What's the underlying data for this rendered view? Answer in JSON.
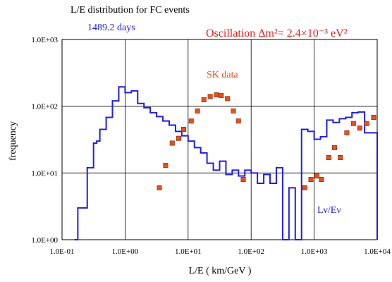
{
  "chart_data": {
    "type": "line",
    "title": "L/E distribution for FC events",
    "subtitle": "1489.2 days",
    "annotation": "Oscillation Δm²= 2.4×10⁻³ eV²",
    "xlabel": "L/E  ( km/GeV )",
    "ylabel": "frequency",
    "x_scale": "log",
    "y_scale": "log",
    "xlim": [
      0.1,
      10000
    ],
    "ylim": [
      1,
      1000
    ],
    "x_tick_labels": [
      "1.0E-01",
      "1.0E+00",
      "1.0E+01",
      "1.0E+02",
      "1.0E+03",
      "1.0E+04"
    ],
    "y_tick_labels": [
      "1.0E+00",
      "1.0E+01",
      "1.0E+02",
      "1.0E+03"
    ],
    "grid": true,
    "colors": {
      "mc": "#1f1fe0",
      "data": "#e8501a",
      "data_edge": "#7a2a08",
      "axis": "#000000"
    },
    "series": [
      {
        "name": "Lν/Eν",
        "kind": "step",
        "edges": [
          0.158,
          0.178,
          0.2,
          0.224,
          0.251,
          0.282,
          0.316,
          0.355,
          0.398,
          0.447,
          0.501,
          0.562,
          0.631,
          0.708,
          0.794,
          0.891,
          1.0,
          1.122,
          1.259,
          1.413,
          1.585,
          1.778,
          1.995,
          2.239,
          2.512,
          2.818,
          3.162,
          3.548,
          3.981,
          4.467,
          5.012,
          5.623,
          6.31,
          7.079,
          7.943,
          8.913,
          10.0,
          11.22,
          12.59,
          14.13,
          15.85,
          17.78,
          19.95,
          22.39,
          25.12,
          28.18,
          31.62,
          35.48,
          39.81,
          44.67,
          50.12,
          56.23,
          63.1,
          70.79,
          79.43,
          89.13,
          100.0,
          112.2,
          125.9,
          141.3,
          158.5,
          177.8,
          199.5,
          223.9,
          251.2,
          281.8,
          316.2,
          354.8,
          398.1,
          446.7,
          501.2,
          562.3,
          631.0,
          707.9,
          794.3,
          891.3,
          1000.0,
          1122.0,
          1259.0,
          1413.0,
          1585.0,
          1778.0,
          1995.0,
          2239.0,
          2512.0,
          2818.0,
          3162.0,
          3548.0,
          3981.0,
          4467.0,
          5012.0,
          5623.0,
          6310.0,
          7079.0,
          7943.0,
          8913.0,
          10000.0
        ],
        "values": [
          1.0,
          3.0,
          3.0,
          3.0,
          12.0,
          12.0,
          28.0,
          30.0,
          45.0,
          45.0,
          68.0,
          68.0,
          120.0,
          120.0,
          195.0,
          195.0,
          160.0,
          160.0,
          170.0,
          170.0,
          110.0,
          110.0,
          95.0,
          95.0,
          80.0,
          80.0,
          70.0,
          70.0,
          60.0,
          60.0,
          52.0,
          52.0,
          42.0,
          42.0,
          36.0,
          36.0,
          30.0,
          30.0,
          24.0,
          24.0,
          20.0,
          20.0,
          14.0,
          14.0,
          11.0,
          11.0,
          15.0,
          15.0,
          9.5,
          9.5,
          11.0,
          11.0,
          9.0,
          9.0,
          11.0,
          11.0,
          10.0,
          10.0,
          7.0,
          7.0,
          9.5,
          9.5,
          7.0,
          7.0,
          12.0,
          12.0,
          0.9,
          0.9,
          6.0,
          6.0,
          0.9,
          0.9,
          45.0,
          45.0,
          42.0,
          42.0,
          32.0,
          32.0,
          35.0,
          35.0,
          62.0,
          62.0,
          57.0,
          57.0,
          65.0,
          65.0,
          68.0,
          68.0,
          80.0,
          80.0,
          82.0,
          82.0,
          40.0,
          40.0,
          40.0,
          40.0
        ]
      },
      {
        "name": "SK data",
        "kind": "scatter",
        "x": [
          3.5,
          4.4,
          5.6,
          7.1,
          8.5,
          11.2,
          14.1,
          17.8,
          22.4,
          28.2,
          33.5,
          42.2,
          52.2,
          63.0,
          75.0,
          708.0,
          890.0,
          1100.0,
          1300.0,
          1700.0,
          2100.0,
          2600.0,
          3300.0,
          4200.0,
          5300.0,
          6800.0,
          8800.0
        ],
        "y": [
          6.0,
          13.0,
          28.0,
          33.0,
          45.0,
          60.0,
          85.0,
          125.0,
          140.0,
          148.0,
          145.0,
          130.0,
          85.0,
          60.0,
          8.0,
          6.0,
          8.0,
          9.0,
          8.0,
          17.0,
          24.0,
          17.0,
          40.0,
          55.0,
          47.0,
          55.0,
          68.0
        ]
      }
    ]
  }
}
